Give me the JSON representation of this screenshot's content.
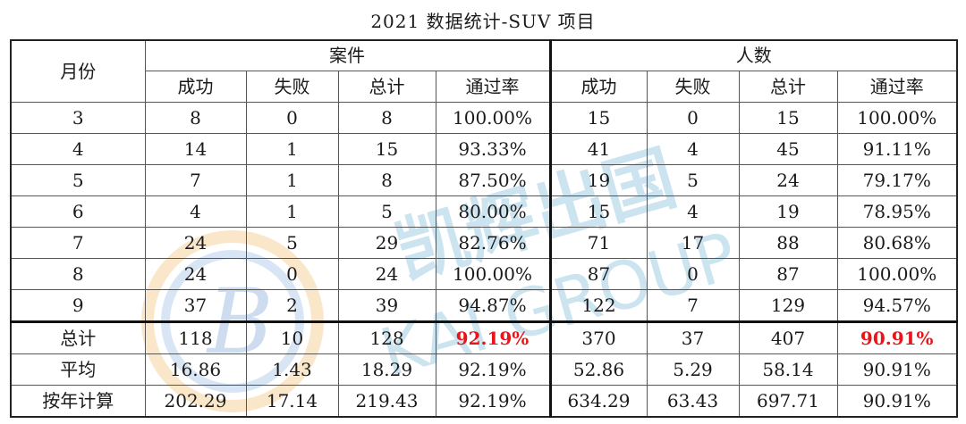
{
  "title": "2021 数据统计-SUV 项目",
  "watermark": {
    "brand_text": "KAI GROUP",
    "cn_text": "凯辉出国",
    "color": "#6fb3d6"
  },
  "headers": {
    "month": "月份",
    "group_cases": "案件",
    "group_people": "人数",
    "cases_cols": [
      "成功",
      "失败",
      "总计",
      "通过率"
    ],
    "people_cols": [
      "成功",
      "失败",
      "总计",
      "通过率"
    ]
  },
  "rows": [
    {
      "month": "3",
      "c": [
        "8",
        "0",
        "8",
        "100.00%"
      ],
      "p": [
        "15",
        "0",
        "15",
        "100.00%"
      ]
    },
    {
      "month": "4",
      "c": [
        "14",
        "1",
        "15",
        "93.33%"
      ],
      "p": [
        "41",
        "4",
        "45",
        "91.11%"
      ]
    },
    {
      "month": "5",
      "c": [
        "7",
        "1",
        "8",
        "87.50%"
      ],
      "p": [
        "19",
        "5",
        "24",
        "79.17%"
      ]
    },
    {
      "month": "6",
      "c": [
        "4",
        "1",
        "5",
        "80.00%"
      ],
      "p": [
        "15",
        "4",
        "19",
        "78.95%"
      ]
    },
    {
      "month": "7",
      "c": [
        "24",
        "5",
        "29",
        "82.76%"
      ],
      "p": [
        "71",
        "17",
        "88",
        "80.68%"
      ]
    },
    {
      "month": "8",
      "c": [
        "24",
        "0",
        "24",
        "100.00%"
      ],
      "p": [
        "87",
        "0",
        "87",
        "100.00%"
      ]
    },
    {
      "month": "9",
      "c": [
        "37",
        "2",
        "39",
        "94.87%"
      ],
      "p": [
        "122",
        "7",
        "129",
        "94.57%"
      ]
    }
  ],
  "summary": [
    {
      "label": "总计",
      "c": [
        "118",
        "10",
        "128",
        "92.19%"
      ],
      "p": [
        "370",
        "37",
        "407",
        "90.91%"
      ],
      "highlight": true
    },
    {
      "label": "平均",
      "c": [
        "16.86",
        "1.43",
        "18.29",
        "92.19%"
      ],
      "p": [
        "52.86",
        "5.29",
        "58.14",
        "90.91%"
      ],
      "highlight": false
    },
    {
      "label": "按年计算",
      "c": [
        "202.29",
        "17.14",
        "219.43",
        "92.19%"
      ],
      "p": [
        "634.29",
        "63.43",
        "697.71",
        "90.91%"
      ],
      "highlight": false
    }
  ],
  "highlight_color": "#e8161b"
}
